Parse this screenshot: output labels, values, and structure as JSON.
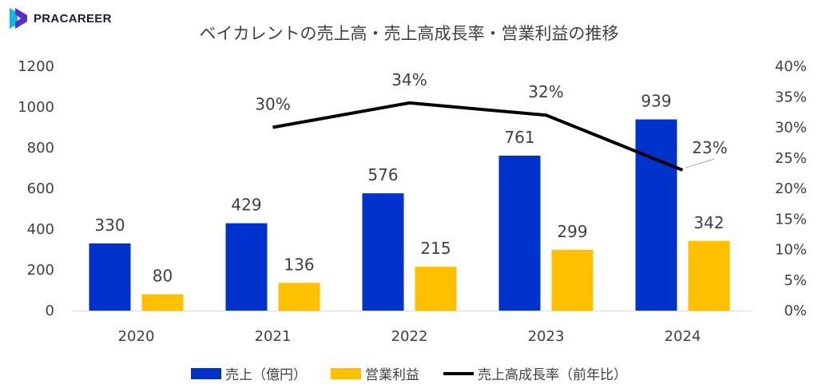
{
  "brand": {
    "name": "PRACAREER",
    "colors": {
      "primary": "#5b2bd6",
      "secondary": "#16b5e0"
    }
  },
  "chart_data": {
    "type": "bar",
    "title": "ベイカレントの売上高・売上高成長率・営業利益の推移",
    "categories": [
      "2020",
      "2021",
      "2022",
      "2023",
      "2024"
    ],
    "series": [
      {
        "name": "売上（億円）",
        "type": "bar",
        "axis": "left",
        "color": "#0033cc",
        "values": [
          330,
          429,
          576,
          761,
          939
        ]
      },
      {
        "name": "営業利益",
        "type": "bar",
        "axis": "left",
        "color": "#ffc000",
        "values": [
          80,
          136,
          215,
          299,
          342
        ]
      },
      {
        "name": "売上高成長率（前年比）",
        "type": "line",
        "axis": "right",
        "color": "#000000",
        "values": [
          null,
          30,
          34,
          32,
          23
        ],
        "labels": [
          "",
          "30%",
          "34%",
          "32%",
          "23%"
        ]
      }
    ],
    "y_left": {
      "min": 0,
      "max": 1200,
      "ticks": [
        "0",
        "200",
        "400",
        "600",
        "800",
        "1000",
        "1200"
      ]
    },
    "y_right": {
      "min": 0,
      "max": 40,
      "ticks": [
        "0%",
        "5%",
        "10%",
        "15%",
        "20%",
        "25%",
        "30%",
        "35%",
        "40%"
      ]
    },
    "grid": false,
    "legend_position": "bottom"
  }
}
